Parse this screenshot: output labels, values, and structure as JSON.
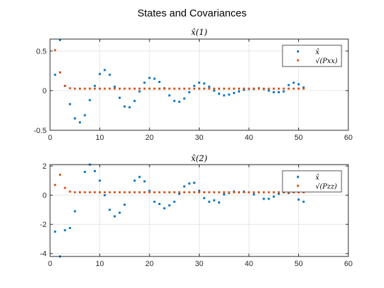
{
  "figure": {
    "suptitle": "States and Covariances"
  },
  "colors": {
    "state": "#0072BD",
    "cov": "#D95319",
    "grid": "#e6e6e6",
    "axis": "#262626"
  },
  "chart_data": [
    {
      "type": "scatter",
      "title": "x̂(1)",
      "xlabel": "",
      "ylabel": "",
      "xlim": [
        0,
        60
      ],
      "ylim": [
        -0.5,
        0.65
      ],
      "xticks": [
        0,
        10,
        20,
        30,
        40,
        50,
        60
      ],
      "yticks": [
        -0.5,
        0,
        0.5
      ],
      "ytick_labels": [
        "-0.5",
        "0",
        "0.5"
      ],
      "grid": true,
      "legend_position": "top-right",
      "series": [
        {
          "name": "x̂",
          "color": "#0072BD",
          "x": [
            1,
            2,
            3,
            4,
            5,
            6,
            7,
            8,
            9,
            10,
            11,
            12,
            13,
            14,
            15,
            16,
            17,
            18,
            19,
            20,
            21,
            22,
            23,
            24,
            25,
            26,
            27,
            28,
            29,
            30,
            31,
            32,
            33,
            34,
            35,
            36,
            37,
            38,
            39,
            40,
            41,
            42,
            43,
            44,
            45,
            46,
            47,
            48,
            49,
            50,
            51
          ],
          "y": [
            0.2,
            0.64,
            0.06,
            -0.17,
            -0.35,
            -0.4,
            -0.31,
            -0.12,
            0.06,
            0.21,
            0.26,
            0.2,
            0.05,
            -0.09,
            -0.2,
            -0.21,
            -0.13,
            -0.01,
            0.1,
            0.16,
            0.15,
            0.11,
            0.03,
            -0.06,
            -0.13,
            -0.14,
            -0.1,
            -0.02,
            0.06,
            0.1,
            0.09,
            0.05,
            0.0,
            -0.04,
            -0.06,
            -0.05,
            -0.03,
            -0.01,
            0.01,
            0.02,
            0.02,
            0.03,
            0.02,
            0.0,
            -0.02,
            -0.02,
            -0.01,
            0.07,
            0.1,
            0.08,
            0.04
          ]
        },
        {
          "name": "√(Pxx)",
          "color": "#D95319",
          "x": [
            1,
            2,
            3,
            4,
            5,
            6,
            7,
            8,
            9,
            10,
            11,
            12,
            13,
            14,
            15,
            16,
            17,
            18,
            19,
            20,
            21,
            22,
            23,
            24,
            25,
            26,
            27,
            28,
            29,
            30,
            31,
            32,
            33,
            34,
            35,
            36,
            37,
            38,
            39,
            40,
            41,
            42,
            43,
            44,
            45,
            46,
            47,
            48,
            49,
            50,
            51
          ],
          "y": [
            0.51,
            0.23,
            0.06,
            0.03,
            0.025,
            0.025,
            0.025,
            0.025,
            0.025,
            0.025,
            0.025,
            0.025,
            0.025,
            0.025,
            0.025,
            0.025,
            0.025,
            0.025,
            0.025,
            0.025,
            0.025,
            0.025,
            0.025,
            0.025,
            0.025,
            0.025,
            0.025,
            0.025,
            0.025,
            0.025,
            0.025,
            0.025,
            0.025,
            0.025,
            0.025,
            0.025,
            0.025,
            0.025,
            0.025,
            0.025,
            0.025,
            0.025,
            0.025,
            0.025,
            0.025,
            0.025,
            0.025,
            0.025,
            0.025,
            0.025,
            0.025
          ]
        }
      ]
    },
    {
      "type": "scatter",
      "title": "x̂(2)",
      "xlabel": "",
      "ylabel": "",
      "xlim": [
        0,
        60
      ],
      "ylim": [
        -4.2,
        2.1
      ],
      "xticks": [
        0,
        10,
        20,
        30,
        40,
        50,
        60
      ],
      "yticks": [
        -4,
        -2,
        0,
        2
      ],
      "ytick_labels": [
        "-4",
        "-2",
        "0",
        "2"
      ],
      "grid": true,
      "legend_position": "top-right",
      "series": [
        {
          "name": "x̂",
          "color": "#0072BD",
          "x": [
            1,
            2,
            3,
            4,
            5,
            6,
            7,
            8,
            9,
            10,
            11,
            12,
            13,
            14,
            15,
            16,
            17,
            18,
            19,
            20,
            21,
            22,
            23,
            24,
            25,
            26,
            27,
            28,
            29,
            30,
            31,
            32,
            33,
            34,
            35,
            36,
            37,
            38,
            39,
            40,
            41,
            42,
            43,
            44,
            45,
            46,
            47,
            48,
            49,
            50,
            51
          ],
          "y": [
            -2.5,
            -4.2,
            -2.4,
            -2.25,
            -1.1,
            0.2,
            1.6,
            2.1,
            1.65,
            1.0,
            0.0,
            -1.0,
            -1.45,
            -1.2,
            -0.65,
            0.2,
            1.0,
            1.25,
            0.95,
            0.3,
            -0.45,
            -0.6,
            -0.9,
            -0.7,
            -0.45,
            0.1,
            0.6,
            0.8,
            0.85,
            0.3,
            -0.2,
            -0.45,
            -0.35,
            -0.5,
            0.05,
            0.15,
            0.25,
            0.2,
            0.25,
            0.2,
            0.05,
            0.2,
            -0.25,
            -0.25,
            -0.1,
            0.1,
            0.2,
            0.15,
            0.3,
            -0.3,
            -0.45
          ]
        },
        {
          "name": "√(Pzz)",
          "color": "#D95319",
          "x": [
            1,
            2,
            3,
            4,
            5,
            6,
            7,
            8,
            9,
            10,
            11,
            12,
            13,
            14,
            15,
            16,
            17,
            18,
            19,
            20,
            21,
            22,
            23,
            24,
            25,
            26,
            27,
            28,
            29,
            30,
            31,
            32,
            33,
            34,
            35,
            36,
            37,
            38,
            39,
            40,
            41,
            42,
            43,
            44,
            45,
            46,
            47,
            48,
            49,
            50,
            51
          ],
          "y": [
            0.7,
            1.4,
            0.5,
            0.25,
            0.2,
            0.2,
            0.2,
            0.2,
            0.2,
            0.2,
            0.2,
            0.2,
            0.2,
            0.2,
            0.2,
            0.2,
            0.2,
            0.2,
            0.2,
            0.2,
            0.2,
            0.2,
            0.2,
            0.2,
            0.2,
            0.2,
            0.2,
            0.2,
            0.2,
            0.2,
            0.2,
            0.2,
            0.2,
            0.2,
            0.2,
            0.2,
            0.2,
            0.2,
            0.2,
            0.2,
            0.2,
            0.2,
            0.2,
            0.2,
            0.2,
            0.2,
            0.2,
            0.2,
            0.2,
            0.2,
            0.2
          ]
        }
      ]
    }
  ]
}
